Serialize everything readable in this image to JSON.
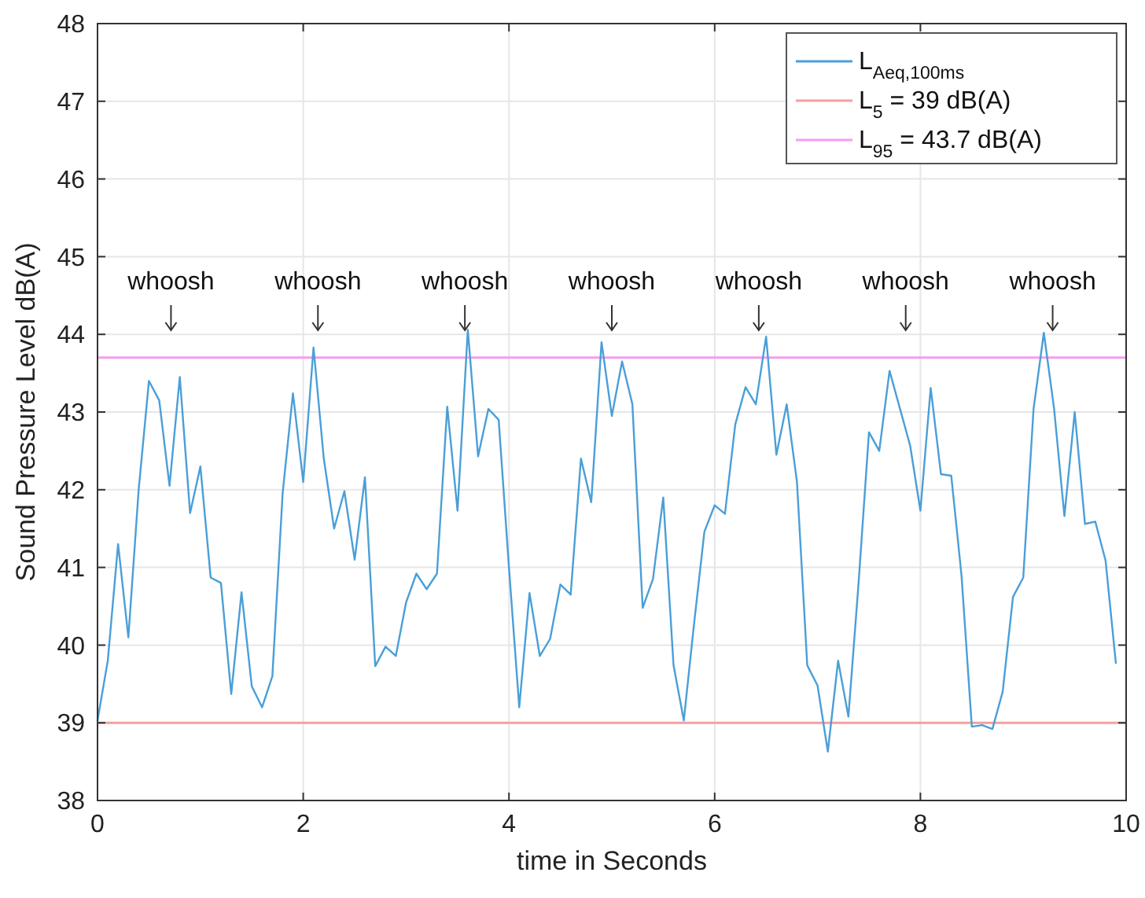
{
  "chart_data": {
    "type": "line",
    "xlabel": "time in Seconds",
    "ylabel": "Sound Pressure Level dB(A)",
    "xlim": [
      0,
      10
    ],
    "xticks": [
      0,
      2,
      4,
      6,
      8,
      10
    ],
    "ylim": [
      38,
      48
    ],
    "yticks": [
      38,
      39,
      40,
      41,
      42,
      43,
      44,
      45,
      46,
      47,
      48
    ],
    "grid": true,
    "legend": "top right",
    "marker": "none",
    "line_style": "solid",
    "x": [
      0,
      0.1,
      0.2,
      0.3,
      0.4,
      0.5,
      0.6,
      0.7,
      0.8,
      0.9,
      1,
      1.1,
      1.2,
      1.3,
      1.4,
      1.5,
      1.6,
      1.7,
      1.8,
      1.9,
      2,
      2.1,
      2.2,
      2.3,
      2.4,
      2.5,
      2.6,
      2.7,
      2.8,
      2.9,
      3,
      3.1,
      3.2,
      3.3,
      3.4,
      3.5,
      3.6,
      3.7,
      3.8,
      3.9,
      4,
      4.1,
      4.2,
      4.3,
      4.4,
      4.5,
      4.6,
      4.7,
      4.8,
      4.9,
      5,
      5.1,
      5.2,
      5.3,
      5.4,
      5.5,
      5.6,
      5.7,
      5.8,
      5.9,
      6,
      6.1,
      6.2,
      6.3,
      6.4,
      6.5,
      6.6,
      6.7,
      6.8,
      6.9,
      7,
      7.1,
      7.2,
      7.3,
      7.4,
      7.5,
      7.6,
      7.7,
      7.8,
      7.9,
      8,
      8.1,
      8.2,
      8.3,
      8.4,
      8.5,
      8.6,
      8.7,
      8.8,
      8.9,
      9,
      9.1,
      9.2,
      9.3,
      9.4,
      9.5,
      9.6,
      9.7,
      9.8,
      9.9
    ],
    "series": [
      {
        "name": "L$_{Aeq,100ms}$",
        "color": "#4a9fd8",
        "values": [
          39.03,
          39.8,
          41.3,
          40.1,
          42.0,
          43.4,
          43.15,
          42.05,
          43.45,
          41.7,
          42.3,
          40.87,
          40.8,
          39.37,
          40.68,
          39.47,
          39.2,
          39.6,
          41.96,
          43.24,
          42.1,
          43.83,
          42.4,
          41.5,
          41.98,
          41.1,
          42.16,
          39.73,
          39.98,
          39.86,
          40.55,
          40.92,
          40.72,
          40.92,
          43.07,
          41.73,
          44.06,
          42.43,
          43.04,
          42.9,
          41.0,
          39.2,
          40.67,
          39.86,
          40.08,
          40.78,
          40.65,
          42.4,
          41.84,
          43.9,
          42.95,
          43.65,
          43.1,
          40.48,
          40.85,
          41.9,
          39.74,
          39.03,
          40.28,
          41.46,
          41.8,
          41.69,
          42.84,
          43.32,
          43.1,
          43.97,
          42.45,
          43.1,
          42.1,
          39.74,
          39.48,
          38.63,
          39.8,
          39.08,
          40.82,
          42.74,
          42.5,
          43.53,
          43.05,
          42.57,
          41.73,
          43.31,
          42.2,
          42.18,
          40.89,
          38.95,
          38.97,
          38.92,
          39.4,
          40.62,
          40.87,
          43.04,
          44.02,
          43.04,
          41.66,
          43.0,
          41.56,
          41.59,
          41.09,
          39.77
        ]
      }
    ],
    "ref_lines": [
      {
        "axis": "y",
        "value": 39,
        "label": "L$_{5}$ = 39 dB(A)",
        "color": "#f4a0a0",
        "line_style": "solid"
      },
      {
        "axis": "y",
        "value": 43.7,
        "label": "L$_{95}$ = 43.7 dB(A)",
        "color": "#f59cf0",
        "line_style": "solid"
      }
    ],
    "annotations": [
      "whoosh",
      "whoosh",
      "whoosh",
      "whoosh",
      "whoosh",
      "whoosh",
      "whoosh"
    ]
  }
}
